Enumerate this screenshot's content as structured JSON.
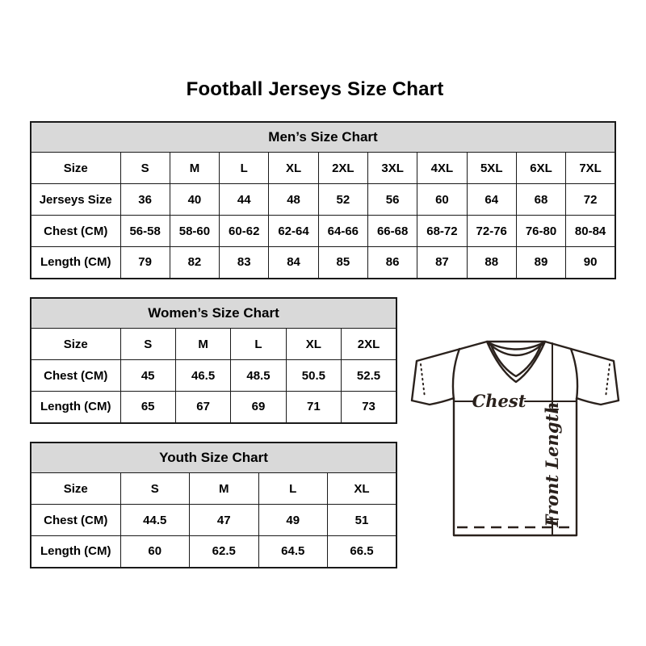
{
  "page": {
    "title": "Football Jerseys Size Chart"
  },
  "colors": {
    "header_bg": "#d9d9d9",
    "border": "#1a1a1a",
    "diagram_stroke": "#2a211c"
  },
  "tables": {
    "men": {
      "title": "Men’s Size Chart",
      "rows": [
        {
          "label": "Size",
          "values": [
            "S",
            "M",
            "L",
            "XL",
            "2XL",
            "3XL",
            "4XL",
            "5XL",
            "6XL",
            "7XL"
          ]
        },
        {
          "label": "Jerseys Size",
          "values": [
            "36",
            "40",
            "44",
            "48",
            "52",
            "56",
            "60",
            "64",
            "68",
            "72"
          ]
        },
        {
          "label": "Chest (CM)",
          "values": [
            "56-58",
            "58-60",
            "60-62",
            "62-64",
            "64-66",
            "66-68",
            "68-72",
            "72-76",
            "76-80",
            "80-84"
          ]
        },
        {
          "label": "Length (CM)",
          "values": [
            "79",
            "82",
            "83",
            "84",
            "85",
            "86",
            "87",
            "88",
            "89",
            "90"
          ]
        }
      ]
    },
    "women": {
      "title": "Women’s Size Chart",
      "rows": [
        {
          "label": "Size",
          "values": [
            "S",
            "M",
            "L",
            "XL",
            "2XL"
          ]
        },
        {
          "label": "Chest (CM)",
          "values": [
            "45",
            "46.5",
            "48.5",
            "50.5",
            "52.5"
          ]
        },
        {
          "label": "Length (CM)",
          "values": [
            "65",
            "67",
            "69",
            "71",
            "73"
          ]
        }
      ]
    },
    "youth": {
      "title": "Youth Size Chart",
      "rows": [
        {
          "label": "Size",
          "values": [
            "S",
            "M",
            "L",
            "XL"
          ]
        },
        {
          "label": "Chest (CM)",
          "values": [
            "44.5",
            "47",
            "49",
            "51"
          ]
        },
        {
          "label": "Length (CM)",
          "values": [
            "60",
            "62.5",
            "64.5",
            "66.5"
          ]
        }
      ]
    }
  },
  "diagram": {
    "chest_label": "Chest",
    "front_length_label": "Front Length"
  }
}
